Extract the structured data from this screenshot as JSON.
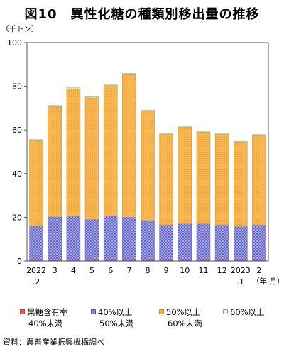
{
  "chart_data": {
    "type": "bar",
    "stacked": true,
    "title": "図10　異性化糖の種類別移出量の推移",
    "ylabel": "（千トン）",
    "xlabel": "（年.月）",
    "ylim": [
      0,
      100
    ],
    "yticks": [
      "0",
      "20",
      "40",
      "60",
      "80",
      "100"
    ],
    "categories": [
      {
        "line1": "2022",
        "line2": ".2"
      },
      {
        "line1": "3",
        "line2": ""
      },
      {
        "line1": "4",
        "line2": ""
      },
      {
        "line1": "5",
        "line2": ""
      },
      {
        "line1": "6",
        "line2": ""
      },
      {
        "line1": "7",
        "line2": ""
      },
      {
        "line1": "8",
        "line2": ""
      },
      {
        "line1": "9",
        "line2": ""
      },
      {
        "line1": "10",
        "line2": ""
      },
      {
        "line1": "11",
        "line2": ""
      },
      {
        "line1": "12",
        "line2": ""
      },
      {
        "line1": "2023",
        "line2": ".1"
      },
      {
        "line1": "2",
        "line2": ""
      }
    ],
    "series": [
      {
        "name_line1": "果糖含有率",
        "name_line2": "40%未満",
        "color": "#e06060",
        "values": [
          0.3,
          0.3,
          0.3,
          0.3,
          0.3,
          0.3,
          0.3,
          0.3,
          0.3,
          0.3,
          0.3,
          0.3,
          0.3
        ]
      },
      {
        "name_line1": "40%以上",
        "name_line2": "50%未満",
        "color": "#8080d0",
        "values": [
          15.7,
          19.9,
          20.2,
          18.7,
          20.3,
          19.7,
          18.2,
          16.2,
          16.7,
          16.7,
          16.2,
          15.5,
          16.2
        ]
      },
      {
        "name_line1": "50%以上",
        "name_line2": "60%未満",
        "color": "#f5b24a",
        "values": [
          39.2,
          50.5,
          58.3,
          55.7,
          59.7,
          65.3,
          50.2,
          41.5,
          44.3,
          42.0,
          41.5,
          38.7,
          41.0
        ]
      },
      {
        "name_line1": "60%以上",
        "name_line2": "",
        "color": "#e6f2ee",
        "values": [
          0.4,
          0.5,
          0.5,
          0.5,
          0.5,
          0.6,
          0.4,
          0.4,
          0.4,
          0.4,
          0.4,
          0.3,
          0.4
        ]
      }
    ],
    "legend_position": "bottom",
    "grid": false
  },
  "source_note": "資料：農畜産業振興機構調べ"
}
